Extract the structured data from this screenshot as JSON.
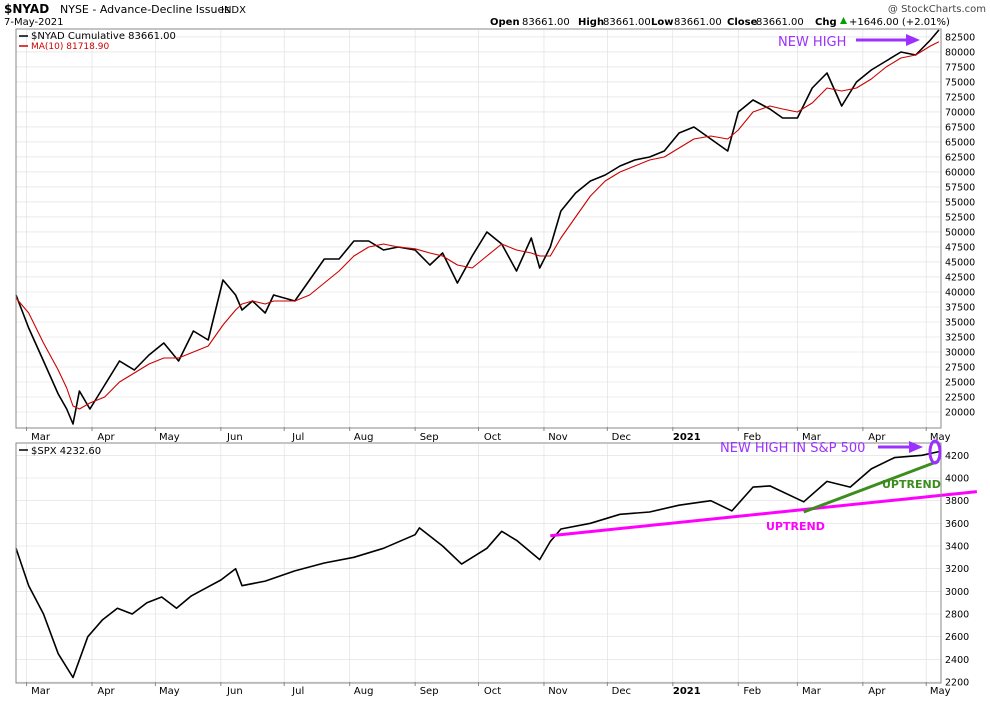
{
  "header": {
    "symbol": "$NYAD",
    "name": "NYSE - Advance-Decline Issues",
    "exchange": "INDX",
    "date": "7-May-2021",
    "copyright": "@ StockCharts.com",
    "open_label": "Open",
    "open_value": "83661.00",
    "high_label": "High",
    "high_value": "83661.00",
    "low_label": "Low",
    "low_value": "83661.00",
    "close_label": "Close",
    "close_value": "83661.00",
    "chg_label": "Chg",
    "chg_value": "+1646.00 (+2.01%)",
    "chg_arrow": "up-triangle-icon"
  },
  "colors": {
    "price_line": "#000000",
    "ma_line": "#cc0000",
    "annotation_purple": "#9b30ff",
    "uptrend_magenta": "#ff00ff",
    "uptrend_green": "#3c8c1e",
    "grid": "#dddddd"
  },
  "top_panel": {
    "legend": [
      {
        "label": "$NYAD Cumulative 83661.00",
        "color": "#000000"
      },
      {
        "label": "MA(10) 81718.90",
        "color": "#cc0000"
      }
    ],
    "annotation": "NEW HIGH"
  },
  "bottom_panel": {
    "legend": [
      {
        "label": "$SPX 4232.60",
        "color": "#000000"
      }
    ],
    "annotation_high": "NEW HIGH IN S&P 500",
    "annotation_uptrend_1": "UPTREND",
    "annotation_uptrend_2": "UPTREND"
  },
  "chart_data": [
    {
      "type": "line",
      "title": "$NYAD Cumulative",
      "x": [
        "2020-02-25",
        "2020-03-02",
        "2020-03-09",
        "2020-03-16",
        "2020-03-20",
        "2020-03-23",
        "2020-03-26",
        "2020-03-31",
        "2020-04-07",
        "2020-04-14",
        "2020-04-21",
        "2020-04-28",
        "2020-05-05",
        "2020-05-12",
        "2020-05-19",
        "2020-05-26",
        "2020-06-02",
        "2020-06-08",
        "2020-06-11",
        "2020-06-16",
        "2020-06-22",
        "2020-06-26",
        "2020-07-06",
        "2020-07-13",
        "2020-07-20",
        "2020-07-27",
        "2020-08-03",
        "2020-08-10",
        "2020-08-17",
        "2020-08-24",
        "2020-09-01",
        "2020-09-08",
        "2020-09-14",
        "2020-09-21",
        "2020-09-28",
        "2020-10-05",
        "2020-10-12",
        "2020-10-19",
        "2020-10-26",
        "2020-10-30",
        "2020-11-04",
        "2020-11-09",
        "2020-11-16",
        "2020-11-23",
        "2020-11-30",
        "2020-12-07",
        "2020-12-14",
        "2020-12-21",
        "2020-12-28",
        "2021-01-04",
        "2021-01-11",
        "2021-01-19",
        "2021-01-27",
        "2021-02-01",
        "2021-02-08",
        "2021-02-16",
        "2021-02-22",
        "2021-03-01",
        "2021-03-08",
        "2021-03-15",
        "2021-03-22",
        "2021-03-29",
        "2021-04-05",
        "2021-04-12",
        "2021-04-19",
        "2021-04-26",
        "2021-05-03",
        "2021-05-07"
      ],
      "series": [
        {
          "name": "$NYAD Cumulative",
          "values": [
            39500,
            34000,
            28500,
            23000,
            20500,
            18000,
            23500,
            20500,
            24500,
            28500,
            27000,
            29500,
            31500,
            28500,
            33500,
            32000,
            42000,
            39500,
            37000,
            38500,
            36500,
            39500,
            38500,
            42000,
            45500,
            45500,
            48500,
            48500,
            47000,
            47500,
            47000,
            44500,
            46500,
            41500,
            46000,
            50000,
            48000,
            43500,
            49000,
            44000,
            47500,
            53500,
            56500,
            58500,
            59500,
            61000,
            62000,
            62500,
            63500,
            66500,
            67500,
            65500,
            63500,
            70000,
            72000,
            70500,
            69000,
            69000,
            74000,
            76500,
            71000,
            75000,
            77000,
            78500,
            80000,
            79500,
            82000,
            83661
          ]
        },
        {
          "name": "MA(10)",
          "values": [
            39000,
            36500,
            31500,
            27000,
            24000,
            21000,
            20500,
            21500,
            22500,
            25000,
            26500,
            28000,
            29000,
            29000,
            30000,
            31000,
            34500,
            37000,
            38000,
            38500,
            38000,
            38500,
            38500,
            39500,
            41500,
            43500,
            46000,
            47500,
            48000,
            47500,
            47200,
            46500,
            46000,
            44500,
            44000,
            46000,
            48000,
            47000,
            46500,
            46000,
            46000,
            49000,
            52500,
            56000,
            58500,
            60000,
            61000,
            62000,
            62500,
            64000,
            65500,
            66000,
            65500,
            67000,
            70000,
            71000,
            70500,
            70000,
            71500,
            74000,
            73500,
            74000,
            75500,
            77500,
            79000,
            79500,
            81000,
            81719
          ]
        }
      ],
      "ylim": [
        17500,
        83661
      ],
      "yticks": [
        20000,
        22500,
        25000,
        27500,
        30000,
        32500,
        35000,
        37500,
        40000,
        42500,
        45000,
        47500,
        50000,
        52500,
        55000,
        57500,
        60000,
        62500,
        65000,
        67500,
        70000,
        72500,
        75000,
        77500,
        80000,
        82500
      ],
      "xtick_labels": [
        "Mar",
        "Apr",
        "May",
        "Jun",
        "Jul",
        "Aug",
        "Sep",
        "Oct",
        "Nov",
        "Dec",
        "2021",
        "Feb",
        "Mar",
        "Apr",
        "May"
      ],
      "grid": true
    },
    {
      "type": "line",
      "title": "$SPX",
      "x": [
        "2020-02-25",
        "2020-03-02",
        "2020-03-09",
        "2020-03-16",
        "2020-03-23",
        "2020-03-30",
        "2020-04-06",
        "2020-04-13",
        "2020-04-20",
        "2020-04-27",
        "2020-05-04",
        "2020-05-11",
        "2020-05-18",
        "2020-05-26",
        "2020-06-01",
        "2020-06-08",
        "2020-06-11",
        "2020-06-22",
        "2020-07-06",
        "2020-07-20",
        "2020-08-03",
        "2020-08-17",
        "2020-09-01",
        "2020-09-03",
        "2020-09-14",
        "2020-09-23",
        "2020-10-05",
        "2020-10-12",
        "2020-10-19",
        "2020-10-30",
        "2020-11-04",
        "2020-11-09",
        "2020-11-23",
        "2020-12-07",
        "2020-12-21",
        "2021-01-04",
        "2021-01-19",
        "2021-01-29",
        "2021-02-08",
        "2021-02-16",
        "2021-03-04",
        "2021-03-15",
        "2021-03-26",
        "2021-04-05",
        "2021-04-16",
        "2021-04-29",
        "2021-05-07"
      ],
      "series": [
        {
          "name": "$SPX",
          "values": [
            3380,
            3050,
            2800,
            2450,
            2240,
            2600,
            2750,
            2850,
            2800,
            2900,
            2950,
            2850,
            2960,
            3040,
            3100,
            3200,
            3050,
            3090,
            3180,
            3250,
            3300,
            3380,
            3500,
            3560,
            3400,
            3240,
            3380,
            3530,
            3450,
            3280,
            3440,
            3550,
            3600,
            3680,
            3700,
            3760,
            3800,
            3710,
            3920,
            3930,
            3790,
            3970,
            3920,
            4080,
            4180,
            4200,
            4232.6
          ]
        }
      ],
      "ylim": [
        2200,
        4300
      ],
      "yticks": [
        2200,
        2400,
        2600,
        2800,
        3000,
        3200,
        3400,
        3600,
        3800,
        4000,
        4200
      ],
      "xtick_labels": [
        "Mar",
        "Apr",
        "May",
        "Jun",
        "Jul",
        "Aug",
        "Sep",
        "Oct",
        "Nov",
        "Dec",
        "2021",
        "Feb",
        "Mar",
        "Apr",
        "May"
      ],
      "grid": true,
      "trendlines": [
        {
          "label": "UPTREND",
          "color": "#ff00ff",
          "from": [
            "2020-11-04",
            3490
          ],
          "to": [
            "2021-05-25",
            3880
          ]
        },
        {
          "label": "UPTREND",
          "color": "#3c8c1e",
          "from": [
            "2021-03-04",
            3700
          ],
          "to": [
            "2021-05-07",
            4150
          ]
        }
      ]
    }
  ]
}
